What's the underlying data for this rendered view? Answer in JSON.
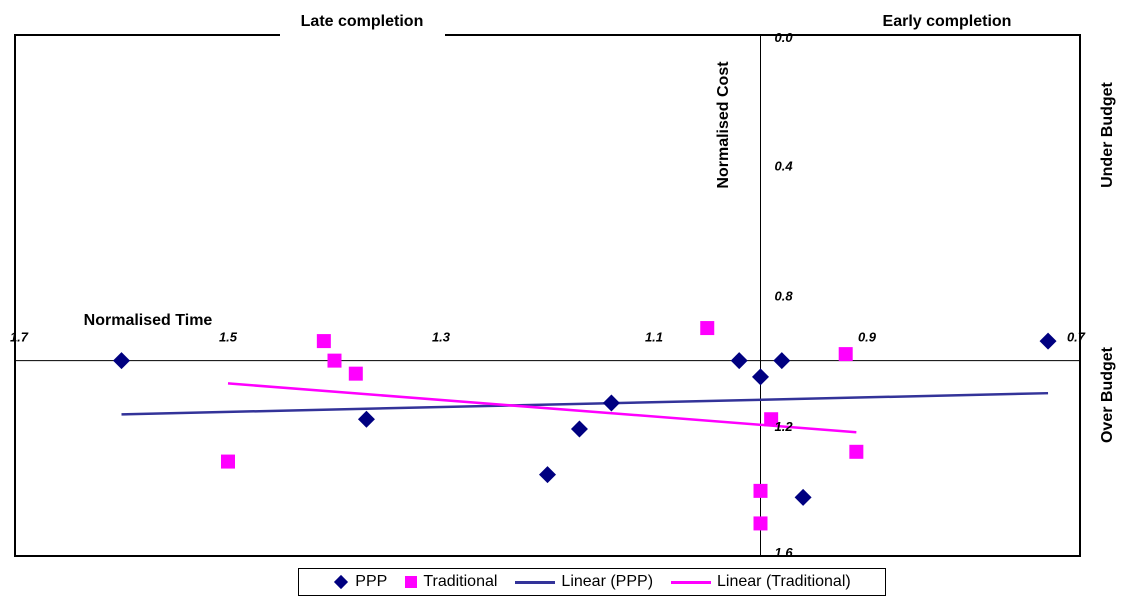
{
  "chart_data": {
    "type": "scatter",
    "xlabel": "Normalised Time",
    "ylabel": "Normalised Cost",
    "x_reversed": true,
    "y_reversed": true,
    "xlim": [
      0.7,
      1.7
    ],
    "ylim": [
      0.0,
      1.6
    ],
    "x_ticks": [
      "1.7",
      "1.5",
      "1.3",
      "1.1",
      "0.9",
      "0.7"
    ],
    "y_ticks": [
      "0.0",
      "0.4",
      "0.8",
      "1.2",
      "1.6"
    ],
    "annotations": {
      "top_left": "Late completion",
      "top_right": "Early completion",
      "right_top": "Under Budget",
      "right_bottom": "Over Budget"
    },
    "series": [
      {
        "name": "PPP",
        "marker": "diamond",
        "color": "#000080",
        "points": [
          [
            1.6,
            1.0
          ],
          [
            1.37,
            1.18
          ],
          [
            1.2,
            1.35
          ],
          [
            1.17,
            1.21
          ],
          [
            1.14,
            1.13
          ],
          [
            1.02,
            1.0
          ],
          [
            1.0,
            1.05
          ],
          [
            0.98,
            1.0
          ],
          [
            0.96,
            1.42
          ],
          [
            0.73,
            0.94
          ]
        ]
      },
      {
        "name": "Traditional",
        "marker": "square",
        "color": "#ff00ff",
        "points": [
          [
            1.5,
            1.31
          ],
          [
            1.41,
            0.94
          ],
          [
            1.4,
            1.0
          ],
          [
            1.38,
            1.04
          ],
          [
            1.05,
            0.9
          ],
          [
            1.0,
            1.4
          ],
          [
            1.0,
            1.5
          ],
          [
            0.99,
            1.18
          ],
          [
            0.92,
            0.98
          ],
          [
            0.91,
            1.28
          ]
        ]
      },
      {
        "name": "Linear (PPP)",
        "type": "line",
        "color": "#333399",
        "points": [
          [
            1.6,
            1.165
          ],
          [
            0.73,
            1.1
          ]
        ]
      },
      {
        "name": "Linear (Traditional)",
        "type": "line",
        "color": "#ff00ff",
        "points": [
          [
            1.5,
            1.07
          ],
          [
            0.91,
            1.22
          ]
        ]
      }
    ],
    "legend": [
      "PPP",
      "Traditional",
      "Linear (PPP)",
      "Linear (Traditional)"
    ],
    "legend_position": "bottom"
  }
}
